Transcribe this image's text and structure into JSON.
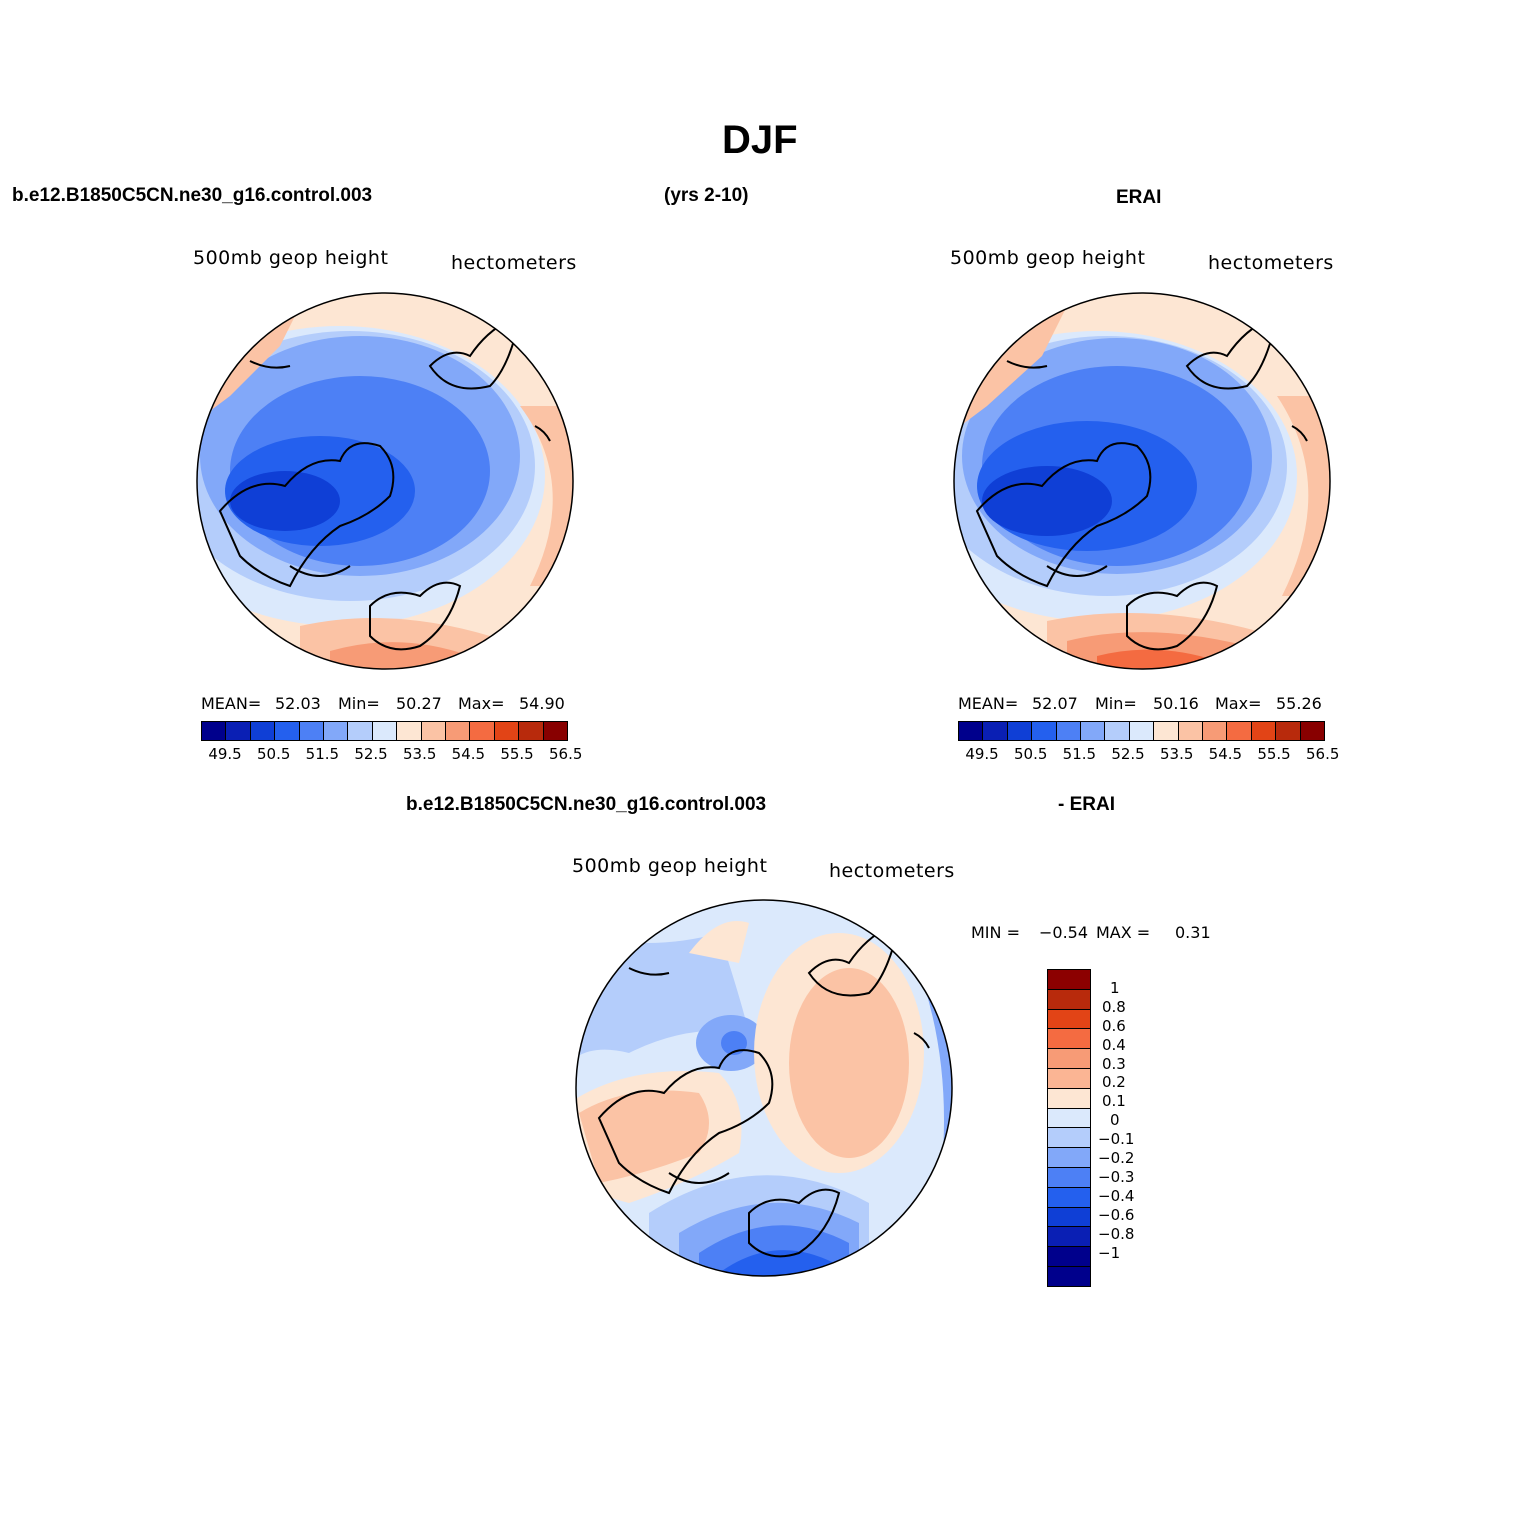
{
  "page": {
    "title": "DJF",
    "case_name_left": "b.e12.B1850C5CN.ne30_g16.control.003",
    "years": "(yrs 2-10)",
    "obs_name": "ERAI",
    "diff_case_name": "b.e12.B1850C5CN.ne30_g16.control.003",
    "diff_obs_name": "- ERAI"
  },
  "panels": {
    "model": {
      "variable": "500mb geop height",
      "units": "hectometers",
      "mean_label": "MEAN=",
      "mean": "52.03",
      "min_label": "Min=",
      "min": "50.27",
      "max_label": "Max=",
      "max": "54.90"
    },
    "obs": {
      "variable": "500mb geop height",
      "units": "hectometers",
      "mean_label": "MEAN=",
      "mean": "52.07",
      "min_label": "Min=",
      "min": "50.16",
      "max_label": "Max=",
      "max": "55.26"
    },
    "diff": {
      "variable": "500mb geop height",
      "units": "hectometers",
      "min_label": "MIN =",
      "min": "−0.54",
      "max_label": "MAX =",
      "max": "0.31"
    }
  },
  "colorbars": {
    "abs_labels": [
      "49.5",
      "50.5",
      "51.5",
      "52.5",
      "53.5",
      "54.5",
      "55.5",
      "56.5"
    ],
    "abs_colors": [
      "#00008c",
      "#0a1fb4",
      "#0f3fd6",
      "#2460ee",
      "#4d80f5",
      "#82a8f9",
      "#b4cdfb",
      "#dbe9fc",
      "#fde6d3",
      "#fbc3a5",
      "#f79b76",
      "#f46b41",
      "#e24416",
      "#b82a0c",
      "#880000"
    ],
    "diff_labels": [
      "1",
      "0.8",
      "0.6",
      "0.4",
      "0.3",
      "0.2",
      "0.1",
      "0",
      "−0.1",
      "−0.2",
      "−0.3",
      "−0.4",
      "−0.6",
      "−0.8",
      "−1"
    ],
    "diff_colors": [
      "#8c0000",
      "#b82a0c",
      "#e24416",
      "#f46b41",
      "#f79b76",
      "#fbb594",
      "#fde6d3",
      "#dbe9fc",
      "#b4cdfb",
      "#82a8f9",
      "#4d80f5",
      "#2460ee",
      "#0f3fd6",
      "#0a1fb4",
      "#00008c",
      "#00008c"
    ]
  }
}
